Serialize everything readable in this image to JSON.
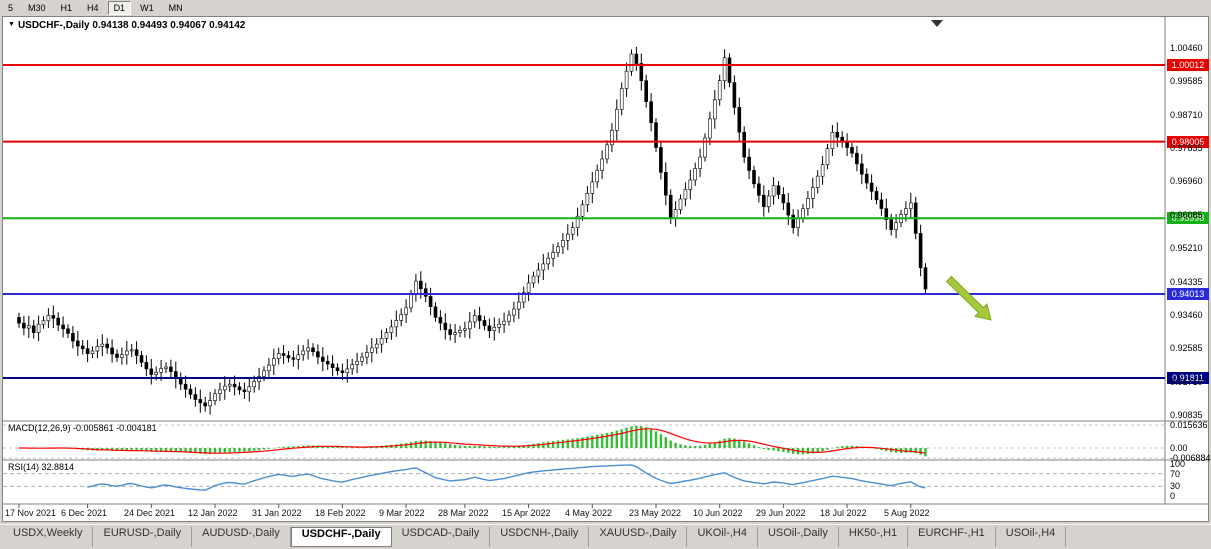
{
  "colors": {
    "chrome": "#d6d3ce",
    "chart_bg": "#ffffff",
    "bull": "#ffffff",
    "bear": "#000000",
    "candle_stroke": "#000000",
    "macd_hist": "#35bd35",
    "macd_signal": "#ff0000",
    "rsi_line": "#4a8fd3"
  },
  "icons": {
    "dropdown": "▼"
  },
  "toolbar": {
    "periods": [
      {
        "label": "5",
        "active": false
      },
      {
        "label": "M30",
        "active": false
      },
      {
        "label": "H1",
        "active": false
      },
      {
        "label": "H4",
        "active": false
      },
      {
        "label": "D1",
        "active": true
      },
      {
        "label": "W1",
        "active": false
      },
      {
        "label": "MN",
        "active": false
      }
    ]
  },
  "chart": {
    "title": "USDCHF-,Daily",
    "ohlc": "0.94138 0.94493 0.94067 0.94142",
    "current_bar": {
      "open": "0.94138",
      "high": "0.94493",
      "low": "0.94067",
      "close": "0.94142"
    },
    "price_axis_labels": [
      "1.00460",
      "0.99585",
      "0.98710",
      "0.97835",
      "0.96960",
      "0.96085",
      "0.95210",
      "0.94335",
      "0.93460",
      "0.92585",
      "0.91710",
      "0.90835"
    ],
    "levels": [
      {
        "value": "1.00012",
        "color": "#e60000",
        "name": "red-resistance-line-1"
      },
      {
        "value": "0.98005",
        "color": "#e60000",
        "name": "red-resistance-line-2"
      },
      {
        "value": "0.95998",
        "color": "#17b117",
        "name": "green-support-line"
      },
      {
        "value": "0.94013",
        "color": "#2b2bd5",
        "name": "blue-support-line"
      },
      {
        "value": "0.91811",
        "color": "#000080",
        "name": "navy-support-line"
      }
    ],
    "annotation_arrow_color": "#a6c93c"
  },
  "macd": {
    "label": "MACD(12,26,9)",
    "values": "-0.005861 -0.004181",
    "axis_labels": [
      "0.015636",
      "0.00",
      "-0.006884"
    ]
  },
  "rsi": {
    "label": "RSI(14)",
    "value": "32.8814",
    "axis_labels": [
      "100",
      "70",
      "30",
      "0"
    ]
  },
  "time_axis": {
    "labels": [
      "17 Nov 2021",
      "6 Dec 2021",
      "24 Dec 2021",
      "12 Jan 2022",
      "31 Jan 2022",
      "18 Feb 2022",
      "9 Mar 2022",
      "28 Mar 2022",
      "15 Apr 2022",
      "4 May 2022",
      "23 May 2022",
      "10 Jun 2022",
      "29 Jun 2022",
      "18 Jul 2022",
      "5 Aug 2022"
    ]
  },
  "tabs": [
    {
      "label": "USDX,Weekly",
      "active": false
    },
    {
      "label": "EURUSD-,Daily",
      "active": false
    },
    {
      "label": "AUDUSD-,Daily",
      "active": false
    },
    {
      "label": "USDCHF-,Daily",
      "active": true
    },
    {
      "label": "USDCAD-,Daily",
      "active": false
    },
    {
      "label": "USDCNH-,Daily",
      "active": false
    },
    {
      "label": "XAUUSD-,Daily",
      "active": false
    },
    {
      "label": "UKOil-,H4",
      "active": false
    },
    {
      "label": "USOil-,Daily",
      "active": false
    },
    {
      "label": "HK50-,H1",
      "active": false
    },
    {
      "label": "EURCHF-,H1",
      "active": false
    },
    {
      "label": "USOil-,H4",
      "active": false
    }
  ],
  "chart_data": {
    "type": "candlestick",
    "symbol": "USDCHF",
    "timeframe": "Daily",
    "ylim": [
      0.9068,
      1.0127
    ],
    "x_label_bar_indices": [
      0,
      14,
      27,
      40,
      53,
      66,
      79,
      91,
      104,
      117,
      130,
      143,
      156,
      169,
      182
    ],
    "horizontal_levels": [
      1.00012,
      0.98005,
      0.95998,
      0.94013,
      0.91811
    ],
    "indicators": [
      {
        "type": "MACD",
        "params": "12,26,9",
        "current_values": "-0.005861 -0.004181"
      },
      {
        "type": "RSI",
        "params": "14",
        "current_value": "32.8814"
      }
    ],
    "approx_closes": [
      0.9325,
      0.9312,
      0.9318,
      0.93,
      0.9322,
      0.9331,
      0.9345,
      0.9338,
      0.932,
      0.931,
      0.9298,
      0.9278,
      0.9265,
      0.9258,
      0.9245,
      0.9252,
      0.9264,
      0.927,
      0.926,
      0.9244,
      0.9235,
      0.9242,
      0.9252,
      0.9255,
      0.924,
      0.9222,
      0.9205,
      0.919,
      0.9196,
      0.9206,
      0.921,
      0.9198,
      0.918,
      0.9165,
      0.9152,
      0.9138,
      0.9125,
      0.9116,
      0.9108,
      0.9122,
      0.914,
      0.915,
      0.916,
      0.9165,
      0.9158,
      0.915,
      0.9145,
      0.9158,
      0.9172,
      0.9185,
      0.92,
      0.9215,
      0.9232,
      0.9245,
      0.924,
      0.9234,
      0.923,
      0.9242,
      0.9252,
      0.926,
      0.925,
      0.9236,
      0.9225,
      0.9218,
      0.9208,
      0.92,
      0.9195,
      0.9205,
      0.9216,
      0.9225,
      0.9236,
      0.9248,
      0.926,
      0.927,
      0.9285,
      0.93,
      0.9315,
      0.9332,
      0.9348,
      0.9365,
      0.94,
      0.9435,
      0.9415,
      0.9395,
      0.9368,
      0.934,
      0.9325,
      0.9308,
      0.9295,
      0.93,
      0.9306,
      0.931,
      0.9328,
      0.9345,
      0.9332,
      0.9318,
      0.9305,
      0.9314,
      0.9322,
      0.933,
      0.9346,
      0.9362,
      0.938,
      0.9405,
      0.943,
      0.9448,
      0.9464,
      0.948,
      0.9495,
      0.951,
      0.9525,
      0.9542,
      0.9558,
      0.9575,
      0.9605,
      0.9635,
      0.9665,
      0.9695,
      0.9725,
      0.9755,
      0.9792,
      0.983,
      0.9885,
      0.994,
      0.9985,
      1.003,
      1.0005,
      0.996,
      0.9905,
      0.985,
      0.9785,
      0.972,
      0.966,
      0.96,
      0.9622,
      0.965,
      0.9675,
      0.97,
      0.973,
      0.976,
      0.981,
      0.986,
      0.991,
      0.996,
      1.002,
      0.9955,
      0.989,
      0.9825,
      0.976,
      0.9725,
      0.969,
      0.966,
      0.963,
      0.9658,
      0.9685,
      0.9662,
      0.964,
      0.9608,
      0.9575,
      0.96,
      0.9625,
      0.9652,
      0.968,
      0.971,
      0.974,
      0.9782,
      0.9825,
      0.9812,
      0.98,
      0.9785,
      0.977,
      0.9742,
      0.9715,
      0.9692,
      0.967,
      0.9648,
      0.9625,
      0.9596,
      0.957,
      0.9588,
      0.961,
      0.9625,
      0.964,
      0.956,
      0.947,
      0.94142
    ]
  }
}
